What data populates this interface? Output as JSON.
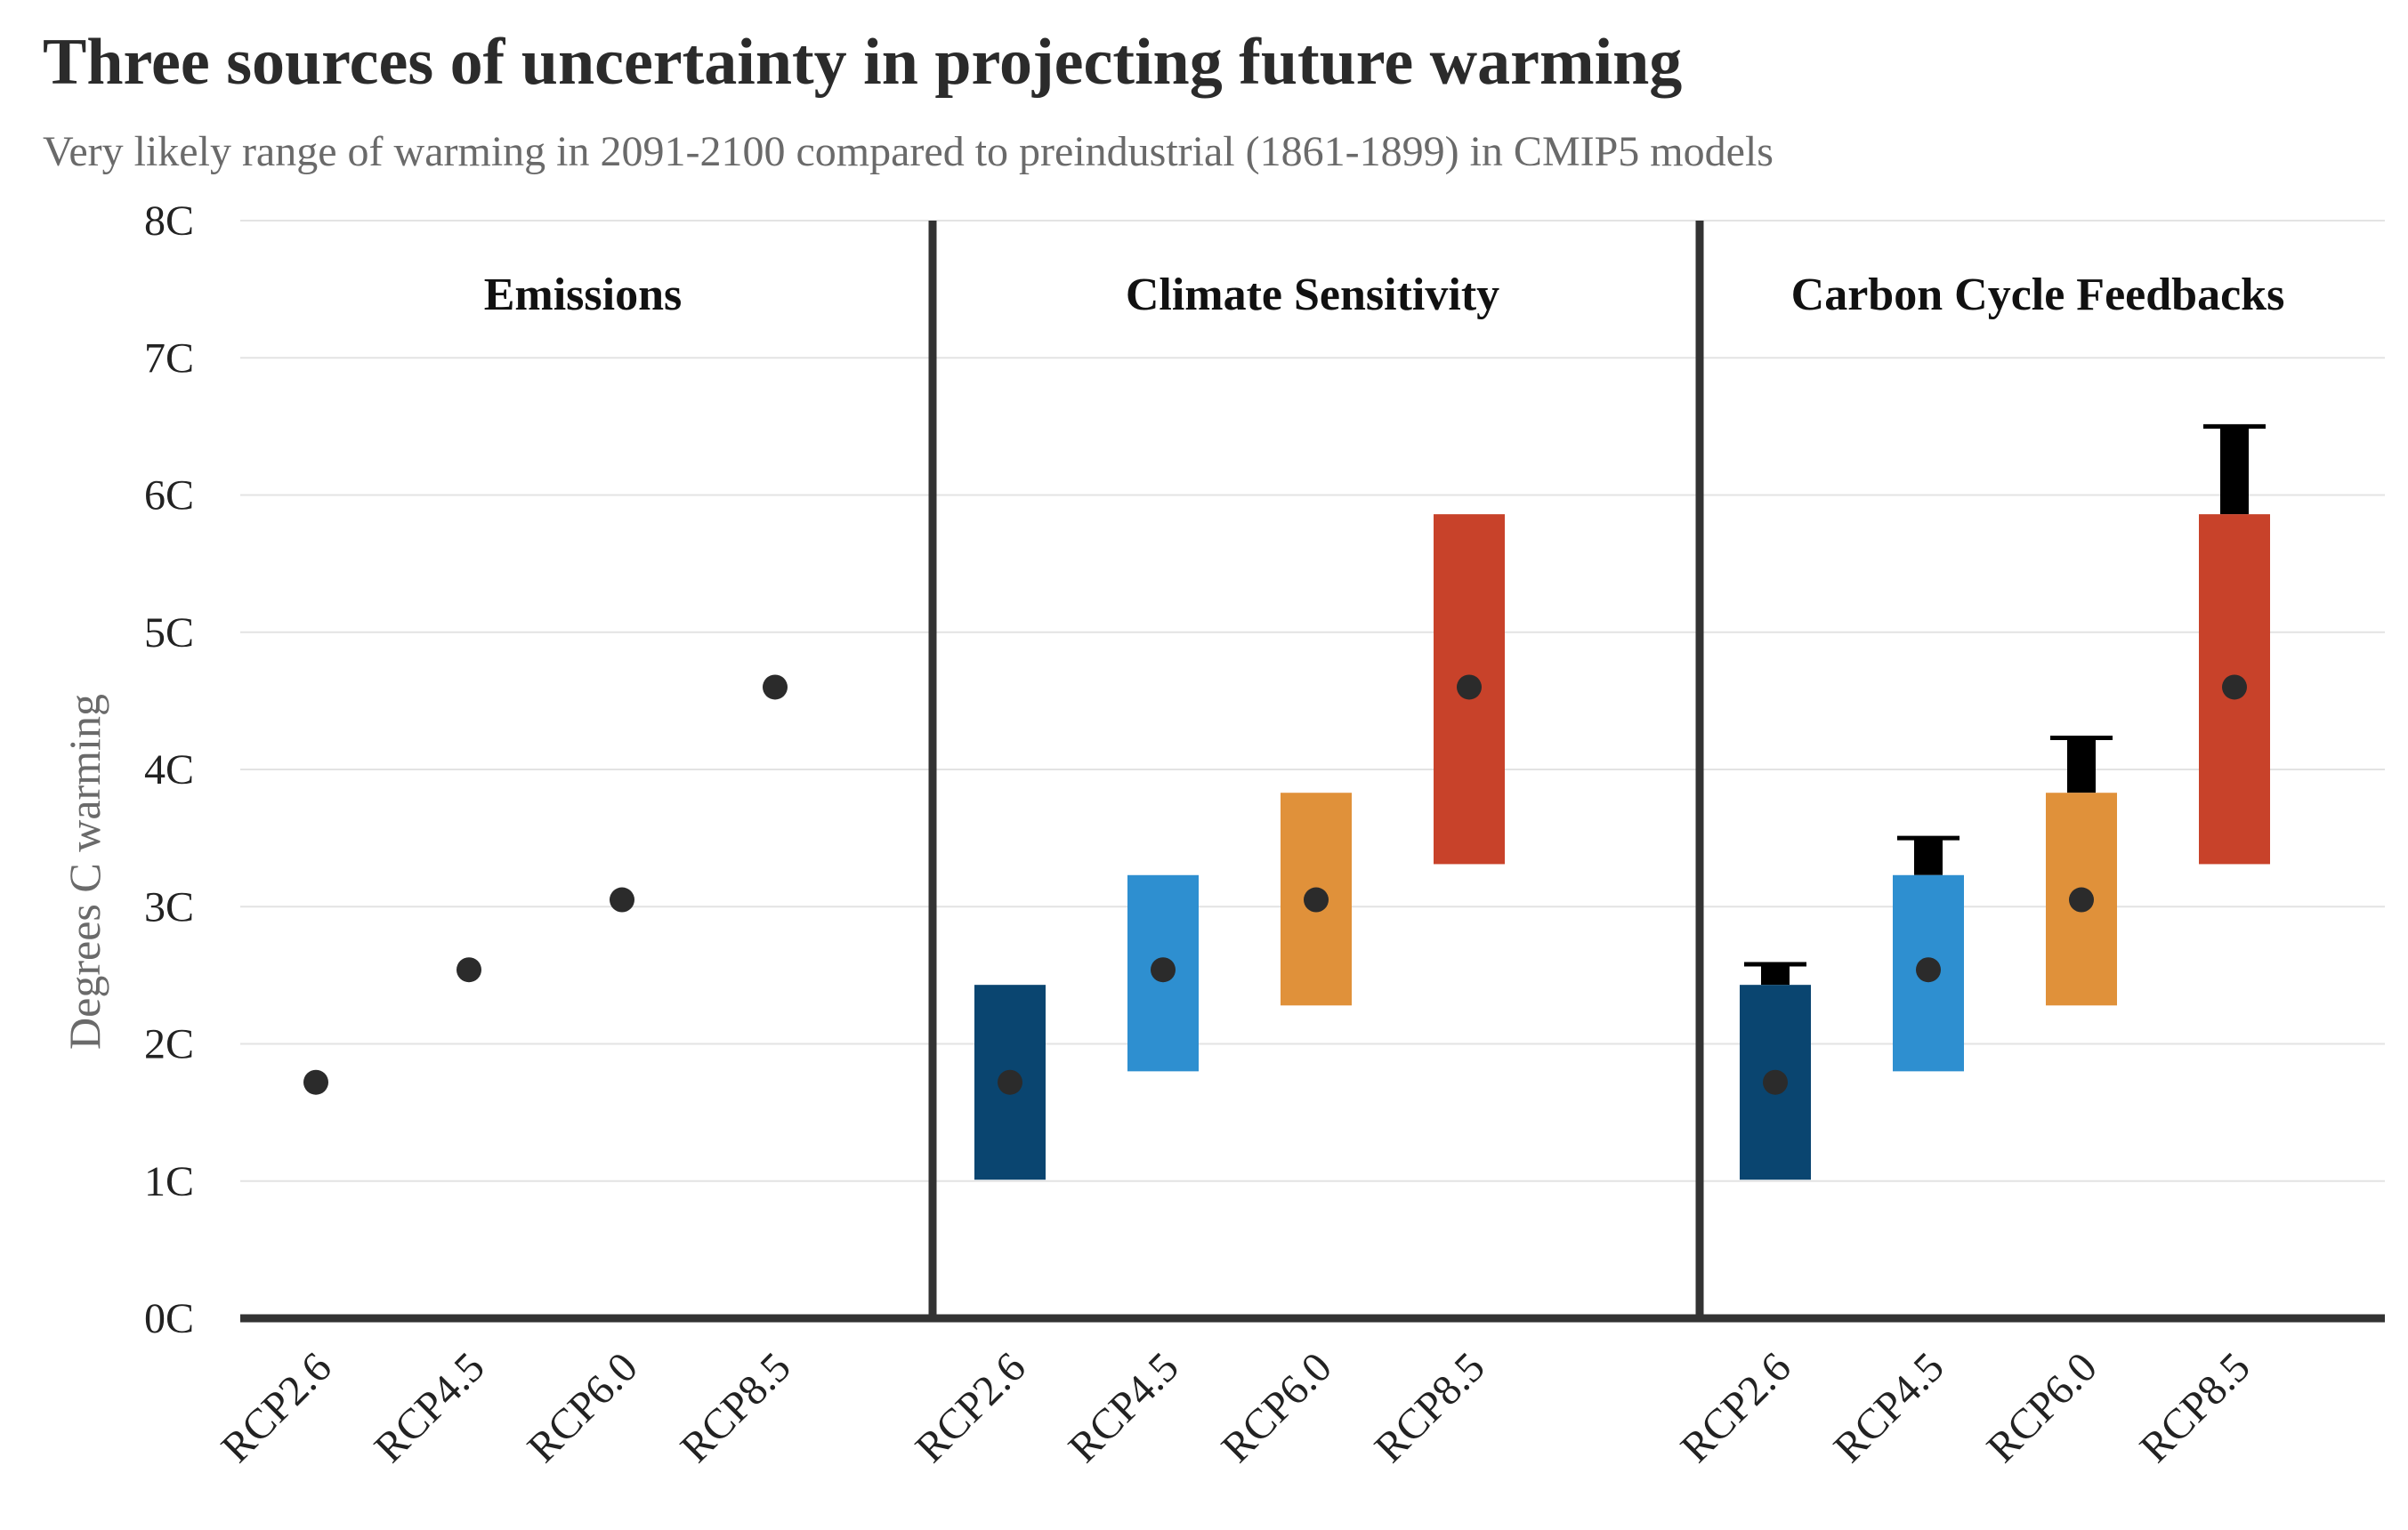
{
  "chart_data": {
    "type": "range-dot",
    "title": "Three sources of uncertainty in projecting future warming",
    "subtitle": "Very likely range of warming in 2091-2100 compared to preindustrial (1861-1899) in CMIP5 models",
    "ylabel": "Degrees C warming",
    "ylim": [
      0,
      8
    ],
    "yticks": [
      "0C",
      "1C",
      "2C",
      "3C",
      "4C",
      "5C",
      "6C",
      "7C",
      "8C"
    ],
    "grid": true,
    "categories": [
      "RCP2.6",
      "RCP4.5",
      "RCP6.0",
      "RCP8.5"
    ],
    "colors": {
      "RCP2.6": "#0a4570",
      "RCP4.5": "#2e8fd0",
      "RCP6.0": "#e0913a",
      "RCP8.5": "#c8422a",
      "carbon_extension": "#000000",
      "dot": "#2b2b2b"
    },
    "panels": [
      {
        "name": "Emissions",
        "points": [
          {
            "category": "RCP2.6",
            "mean": 1.72
          },
          {
            "category": "RCP4.5",
            "mean": 2.54
          },
          {
            "category": "RCP6.0",
            "mean": 3.05
          },
          {
            "category": "RCP8.5",
            "mean": 4.6
          }
        ]
      },
      {
        "name": "Climate Sensitivity",
        "points": [
          {
            "category": "RCP2.6",
            "mean": 1.72,
            "low": 1.01,
            "high": 2.43
          },
          {
            "category": "RCP4.5",
            "mean": 2.54,
            "low": 1.8,
            "high": 3.23
          },
          {
            "category": "RCP6.0",
            "mean": 3.05,
            "low": 2.28,
            "high": 3.83
          },
          {
            "category": "RCP8.5",
            "mean": 4.6,
            "low": 3.31,
            "high": 5.86
          }
        ]
      },
      {
        "name": "Carbon Cycle Feedbacks",
        "points": [
          {
            "category": "RCP2.6",
            "mean": 1.72,
            "low": 1.01,
            "high": 2.43,
            "carbon_high": 2.58
          },
          {
            "category": "RCP4.5",
            "mean": 2.54,
            "low": 1.8,
            "high": 3.23,
            "carbon_high": 3.5
          },
          {
            "category": "RCP6.0",
            "mean": 3.05,
            "low": 2.28,
            "high": 3.83,
            "carbon_high": 4.23
          },
          {
            "category": "RCP8.5",
            "mean": 4.6,
            "low": 3.31,
            "high": 5.86,
            "carbon_high": 6.5
          }
        ]
      }
    ]
  }
}
